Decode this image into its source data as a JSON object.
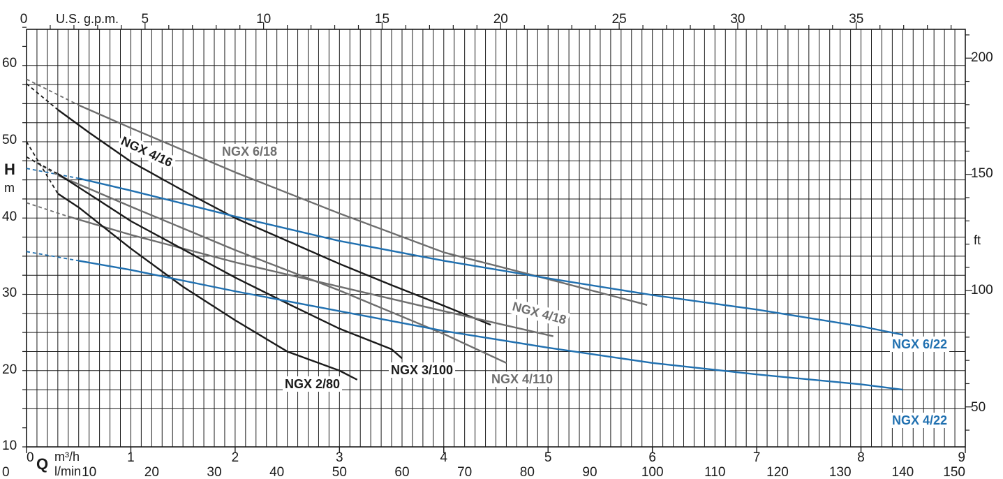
{
  "chart_data": {
    "type": "line",
    "title": "",
    "grid": true,
    "axes": {
      "x_m3h": {
        "label": "m³/h",
        "range": [
          0,
          9
        ],
        "ticks": [
          "0",
          "1",
          "2",
          "3",
          "4",
          "5",
          "6",
          "7",
          "8",
          "9"
        ]
      },
      "x_lmin": {
        "label": "l/min",
        "range": [
          0,
          150
        ],
        "ticks": [
          "0",
          "10",
          "20",
          "30",
          "40",
          "50",
          "60",
          "70",
          "80",
          "90",
          "100",
          "110",
          "120",
          "130",
          "140",
          "150"
        ]
      },
      "x_usgpm": {
        "label": "U.S. g.p.m.",
        "range": [
          0,
          39.6
        ],
        "ticks": [
          "0",
          "5",
          "10",
          "15",
          "20",
          "25",
          "30",
          "35"
        ]
      },
      "y_m": {
        "name": "H",
        "unit": "m",
        "range": [
          10,
          65
        ],
        "ticks": [
          "10",
          "20",
          "30",
          "40",
          "50",
          "60"
        ]
      },
      "y_ft": {
        "unit": "ft",
        "ticks": [
          "50",
          "100",
          "150",
          "200"
        ]
      },
      "q_symbol": "Q"
    },
    "series": [
      {
        "name": "NGX 4/16",
        "color": "#1a1a1a",
        "dash_x": [
          0,
          0.3
        ],
        "x": [
          0,
          0.3,
          0.6,
          1,
          1.5,
          2,
          2.5,
          3,
          3.5,
          4,
          4.45
        ],
        "y": [
          57.6,
          54.2,
          51.2,
          47.4,
          43.6,
          40,
          37,
          34,
          31.2,
          28.5,
          26
        ]
      },
      {
        "name": "NGX 6/18",
        "color": "#6e6e6e",
        "dash_x": [
          0,
          0.5
        ],
        "x": [
          0,
          0.5,
          1,
          2,
          3,
          4,
          5,
          5.95
        ],
        "y": [
          58.2,
          54.8,
          51.8,
          46,
          40.6,
          35.5,
          32,
          28.6
        ]
      },
      {
        "name": "NGX 6/22",
        "color": "#2070b0",
        "dash_x": [
          0,
          0.5
        ],
        "x": [
          0,
          0.5,
          1,
          2,
          3,
          4,
          5,
          6,
          7,
          8,
          8.4
        ],
        "y": [
          46.5,
          45.2,
          43.6,
          40.2,
          37,
          34.4,
          32.1,
          29.9,
          28,
          25.8,
          24.7
        ]
      },
      {
        "name": "NGX 4/110",
        "color": "#6e6e6e",
        "dash_x": [
          0,
          0.3
        ],
        "x": [
          0,
          0.3,
          1,
          2,
          3,
          4,
          4.6
        ],
        "y": [
          48,
          45.6,
          41.5,
          35.8,
          30.5,
          24.8,
          21
        ]
      },
      {
        "name": "NGX 4/18",
        "color": "#6e6e6e",
        "dash_x": [
          0,
          0.4
        ],
        "x": [
          0,
          0.4,
          1,
          2,
          3,
          4,
          5.05
        ],
        "y": [
          42,
          40.2,
          37.8,
          34.2,
          31,
          27.8,
          24.5
        ]
      },
      {
        "name": "NGX 3/100",
        "color": "#1a1a1a",
        "dash_x": [
          0,
          0.3
        ],
        "x": [
          0,
          0.3,
          1,
          2,
          2.5,
          3,
          3.5,
          3.6
        ],
        "y": [
          48,
          45.8,
          39.6,
          32.2,
          28.8,
          25.5,
          22.8,
          21.6
        ]
      },
      {
        "name": "NGX 2/80",
        "color": "#1a1a1a",
        "dash_x": [
          0,
          0.3
        ],
        "x": [
          0,
          0.3,
          0.5,
          1,
          1.5,
          2,
          2.5,
          3,
          3.17
        ],
        "y": [
          50,
          43.2,
          41.4,
          36,
          31,
          26.6,
          22.5,
          20,
          18.8
        ]
      },
      {
        "name": "NGX 4/22",
        "color": "#2070b0",
        "dash_x": [
          0,
          0.5
        ],
        "x": [
          0,
          0.5,
          1,
          2,
          3,
          4,
          5,
          6,
          7,
          8,
          8.4
        ],
        "y": [
          35.6,
          34.4,
          33.2,
          30.4,
          27.8,
          25.2,
          23,
          21,
          19.5,
          18.2,
          17.5
        ]
      }
    ]
  }
}
